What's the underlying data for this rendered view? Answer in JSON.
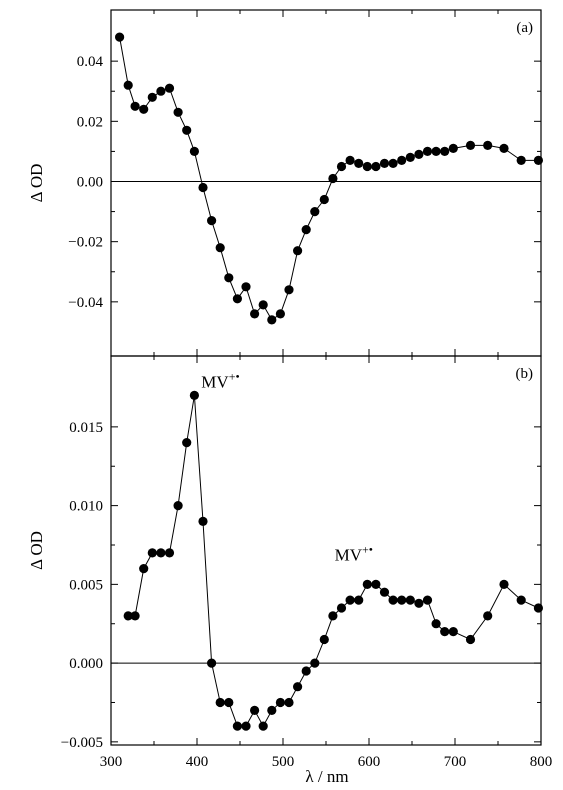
{
  "chart_data": [
    {
      "type": "scatter",
      "panel_label": "(a)",
      "ylabel": "Δ OD",
      "xlabel": "",
      "xlim": [
        300,
        800
      ],
      "ylim": [
        -0.058,
        0.057
      ],
      "x_ticks": [
        300,
        400,
        500,
        600,
        700,
        800
      ],
      "y_ticks": [
        -0.04,
        -0.02,
        0.0,
        0.02,
        0.04
      ],
      "y_tick_labels": [
        "-0.04",
        "-0.02",
        "0.00",
        "0.02",
        "0.04"
      ],
      "x_tick_labels_shown": false,
      "zero_line": true,
      "grid": false,
      "series": [
        {
          "x": [
            310,
            320,
            328,
            338,
            348,
            358,
            368,
            378,
            388,
            397,
            407,
            417,
            427,
            437,
            447,
            457,
            467,
            477,
            487,
            497,
            507,
            517,
            527,
            537,
            548,
            558,
            568,
            578,
            588,
            598,
            608,
            618,
            628,
            638,
            648,
            658,
            668,
            678,
            688,
            698,
            718,
            738,
            757,
            777,
            797
          ],
          "y": [
            0.048,
            0.032,
            0.025,
            0.024,
            0.028,
            0.03,
            0.031,
            0.023,
            0.017,
            0.01,
            -0.002,
            -0.013,
            -0.022,
            -0.032,
            -0.039,
            -0.035,
            -0.044,
            -0.041,
            -0.046,
            -0.044,
            -0.036,
            -0.023,
            -0.016,
            -0.01,
            -0.006,
            0.001,
            0.005,
            0.007,
            0.006,
            0.005,
            0.005,
            0.006,
            0.006,
            0.007,
            0.008,
            0.009,
            0.01,
            0.01,
            0.01,
            0.011,
            0.012,
            0.012,
            0.011,
            0.007,
            0.007
          ]
        }
      ]
    },
    {
      "type": "scatter",
      "panel_label": "(b)",
      "ylabel": "Δ OD",
      "xlabel": "λ / nm",
      "xlim": [
        300,
        800
      ],
      "ylim": [
        -0.0052,
        0.0195
      ],
      "x_ticks": [
        300,
        400,
        500,
        600,
        700,
        800
      ],
      "x_tick_labels": [
        "300",
        "400",
        "500",
        "600",
        "700",
        "800"
      ],
      "y_ticks": [
        -0.005,
        0.0,
        0.005,
        0.01,
        0.015
      ],
      "y_tick_labels": [
        "-0.005",
        "0.000",
        "0.005",
        "0.010",
        "0.015"
      ],
      "zero_line": true,
      "grid": false,
      "annotations": [
        {
          "text": "MV",
          "superscript": "+•",
          "x": 405,
          "y": 0.0175
        },
        {
          "text": "MV",
          "superscript": "+•",
          "x": 560,
          "y": 0.0065
        }
      ],
      "series": [
        {
          "x": [
            320,
            328,
            338,
            348,
            358,
            368,
            378,
            388,
            397,
            407,
            417,
            427,
            437,
            447,
            457,
            467,
            477,
            487,
            497,
            507,
            517,
            527,
            537,
            548,
            558,
            568,
            578,
            588,
            598,
            608,
            618,
            628,
            638,
            648,
            658,
            668,
            678,
            688,
            698,
            718,
            738,
            757,
            777,
            797
          ],
          "y": [
            0.003,
            0.003,
            0.006,
            0.007,
            0.007,
            0.007,
            0.01,
            0.014,
            0.017,
            0.009,
            0.0,
            -0.0025,
            -0.0025,
            -0.004,
            -0.004,
            -0.003,
            -0.004,
            -0.003,
            -0.0025,
            -0.0025,
            -0.0015,
            -0.0005,
            0.0,
            0.0015,
            0.003,
            0.0035,
            0.004,
            0.004,
            0.005,
            0.005,
            0.0045,
            0.004,
            0.004,
            0.004,
            0.0038,
            0.004,
            0.0025,
            0.002,
            0.002,
            0.0015,
            0.003,
            0.005,
            0.004,
            0.0035
          ]
        }
      ]
    }
  ]
}
